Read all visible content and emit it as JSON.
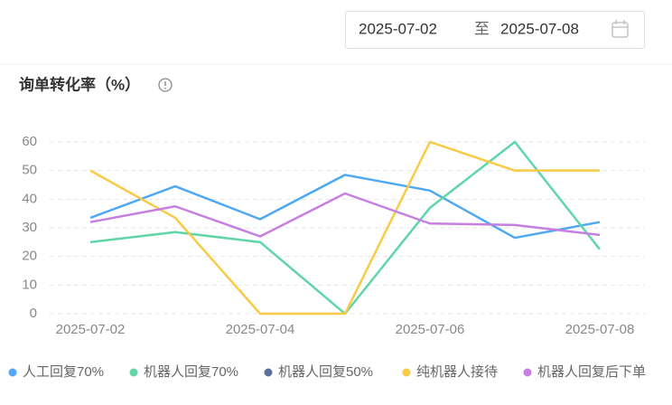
{
  "date_picker": {
    "start": "2025-07-02",
    "separator": "至",
    "end": "2025-07-08"
  },
  "chart_data": {
    "type": "line",
    "title": "询单转化率（%）",
    "categories": [
      "2025-07-02",
      null,
      "2025-07-04",
      null,
      "2025-07-06",
      null,
      "2025-07-08"
    ],
    "series": [
      {
        "name": "人工回复70%",
        "color": "#4ea8f3",
        "values": [
          33.5,
          44.5,
          33,
          48.5,
          43,
          26.5,
          32
        ]
      },
      {
        "name": "机器人回复70%",
        "color": "#5fd5a8",
        "values": [
          25,
          28.5,
          25,
          0,
          37,
          60,
          22.5
        ]
      },
      {
        "name": "机器人回复50%",
        "color": "#5b6e9c",
        "values": [
          null,
          null,
          null,
          null,
          null,
          null,
          null
        ]
      },
      {
        "name": "纯机器人接待",
        "color": "#f8ca45",
        "values": [
          50,
          33.5,
          0,
          0,
          60,
          50,
          50
        ]
      },
      {
        "name": "机器人回复后下单",
        "color": "#c57fe0",
        "values": [
          32,
          37.5,
          27,
          42,
          31.5,
          31,
          27.5
        ]
      }
    ],
    "ylim": [
      0,
      60
    ],
    "yticks": [
      0,
      10,
      20,
      30,
      40,
      50,
      60
    ],
    "grid": true
  }
}
